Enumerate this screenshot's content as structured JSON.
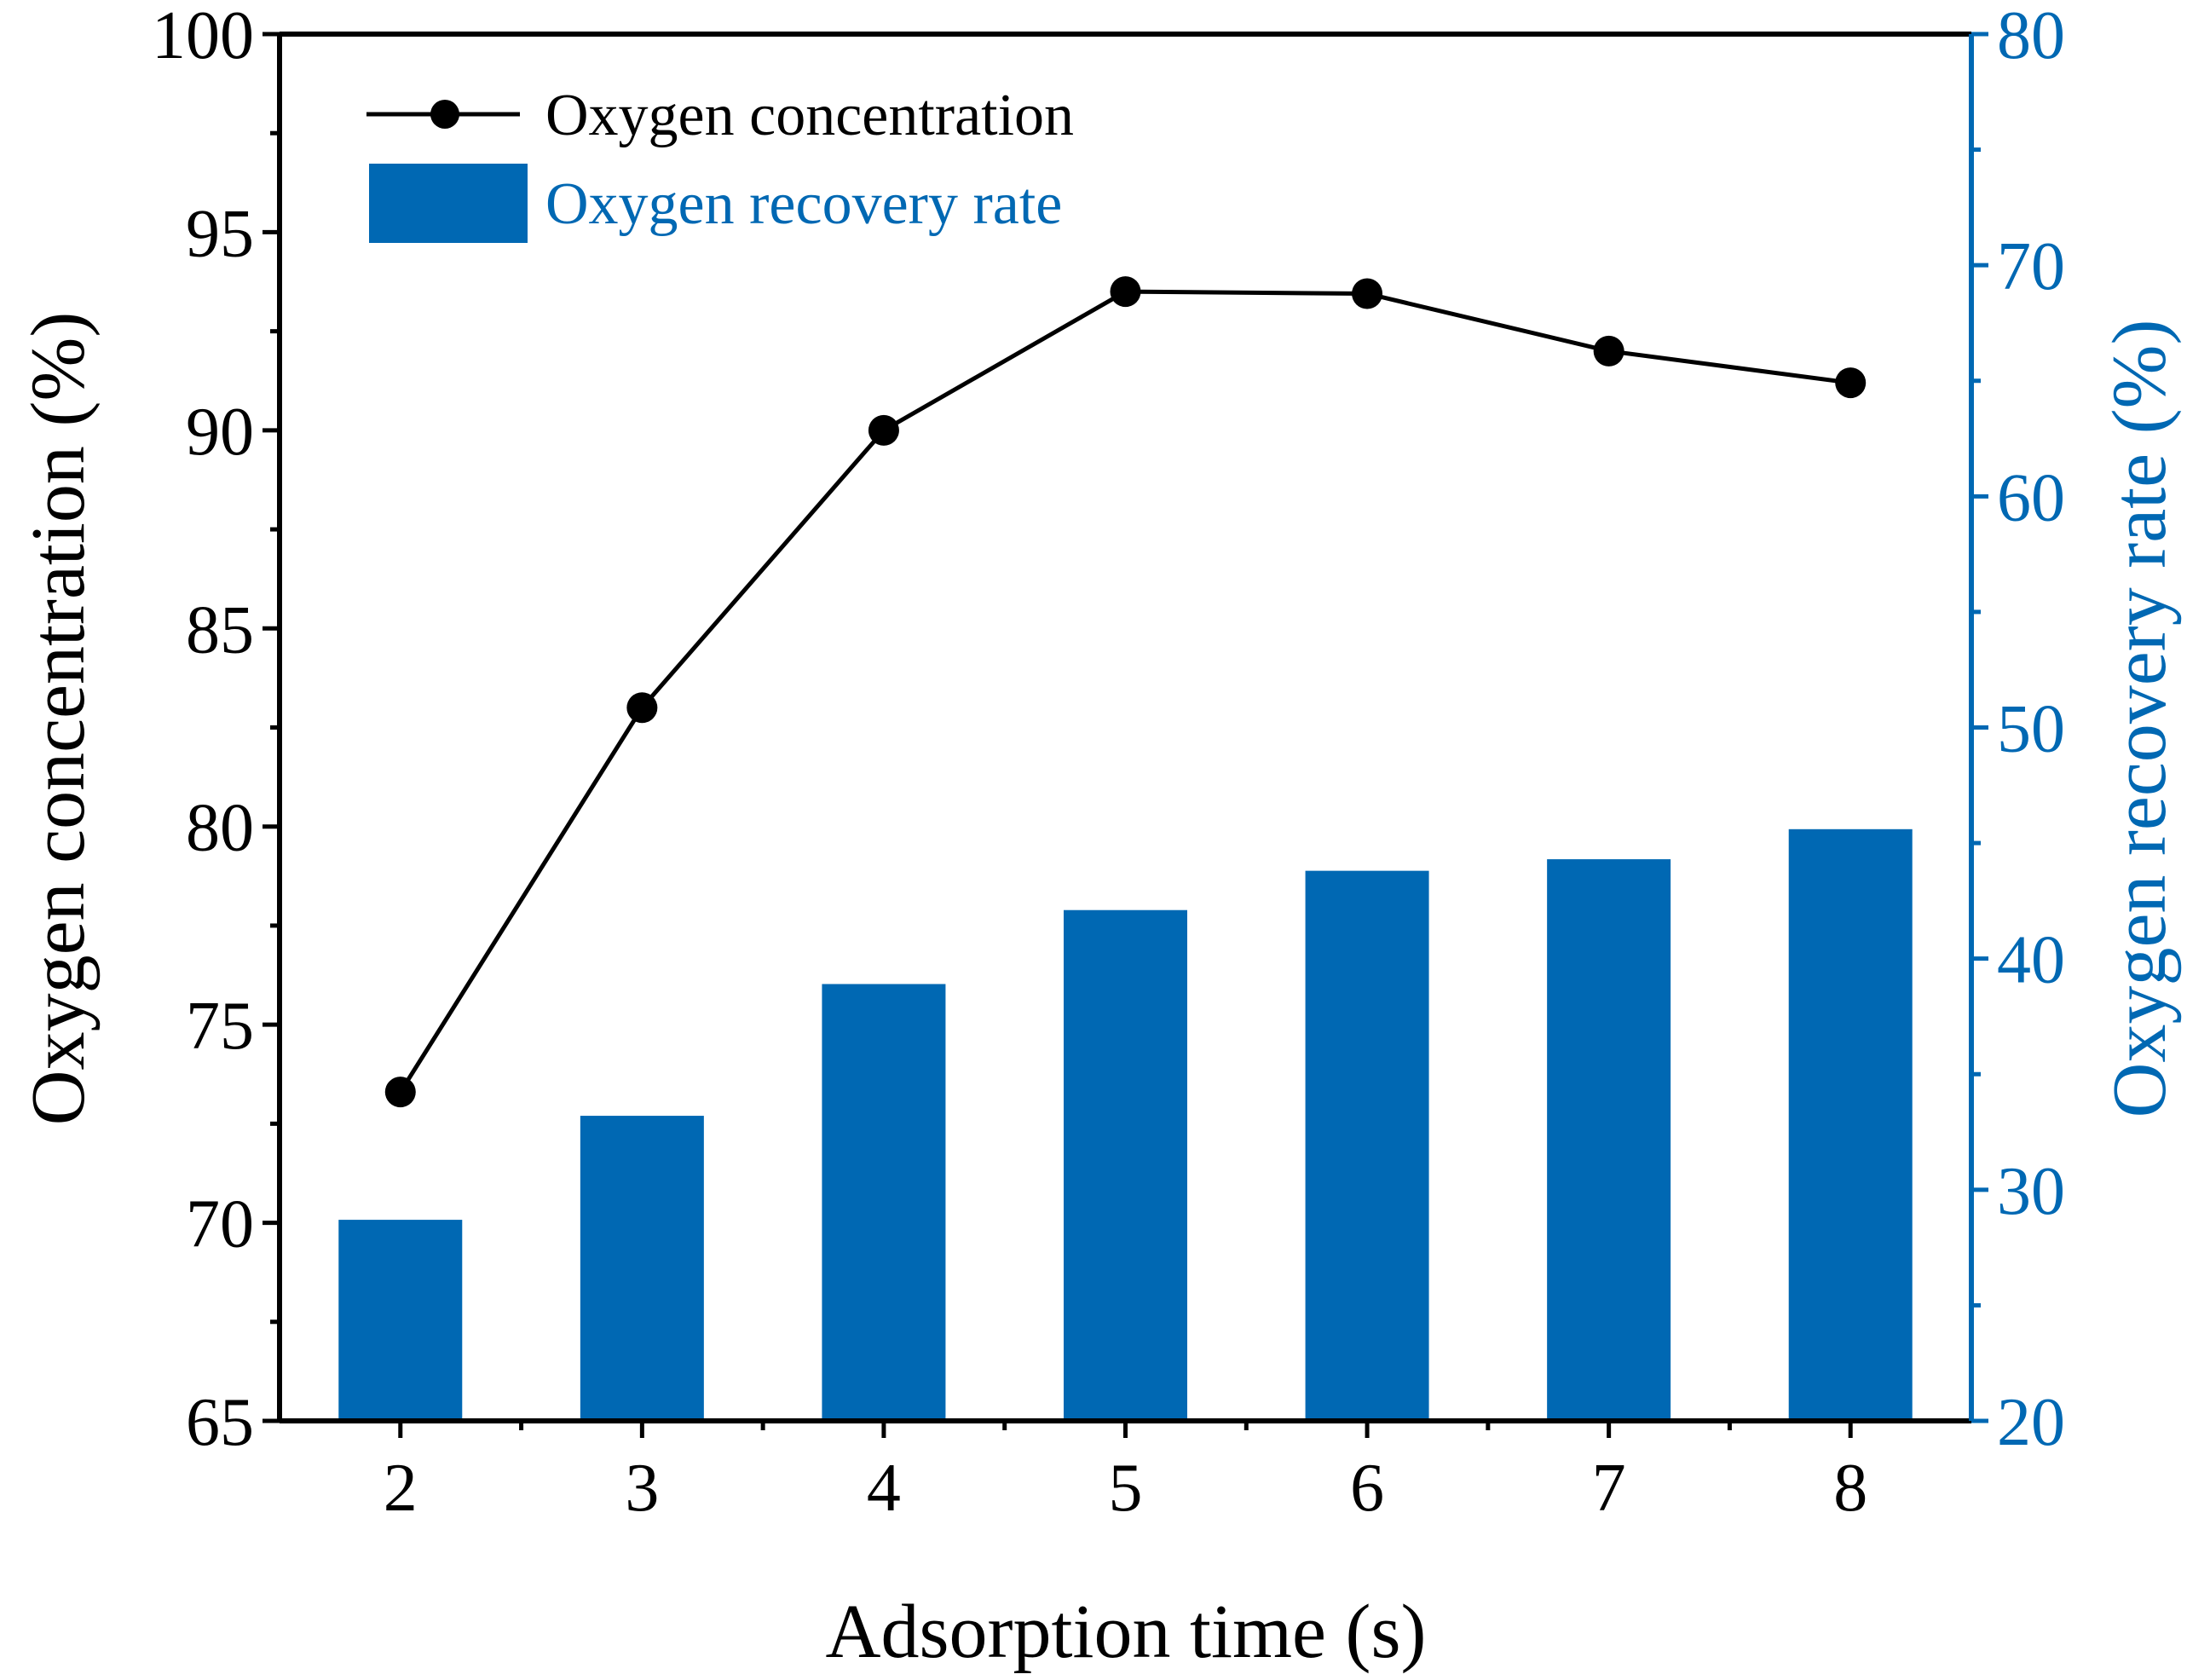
{
  "colors": {
    "axis_left": "#000000",
    "axis_right": "#0068b3",
    "bar": "#0068b3",
    "line": "#000000"
  },
  "chart_data": {
    "type": "bar+line",
    "x": [
      2,
      3,
      4,
      5,
      6,
      7,
      8
    ],
    "xlabel": "Adsorption time (s)",
    "ylabel_left": "Oxygen concentration (%)",
    "ylabel_right": "Oxygen recovery rate (%)",
    "ylim_left": [
      65,
      100
    ],
    "ylim_right": [
      20,
      80
    ],
    "xlim": [
      1.5,
      8.5
    ],
    "x_ticks": [
      2,
      3,
      4,
      5,
      6,
      7,
      8
    ],
    "y_ticks_left": [
      65,
      70,
      75,
      80,
      85,
      90,
      95,
      100
    ],
    "y_ticks_right": [
      20,
      30,
      40,
      50,
      60,
      70,
      80
    ],
    "grid": false,
    "legend_position": "top-left",
    "series": [
      {
        "name": "Oxygen concentration",
        "kind": "line",
        "axis": "left",
        "marker": "circle",
        "values": [
          73.3,
          83.0,
          90.0,
          93.5,
          93.45,
          92.0,
          91.2
        ]
      },
      {
        "name": "Oxygen recovery rate",
        "kind": "bar",
        "axis": "right",
        "values": [
          28.7,
          33.2,
          38.9,
          42.1,
          43.8,
          44.3,
          45.6
        ]
      }
    ]
  }
}
